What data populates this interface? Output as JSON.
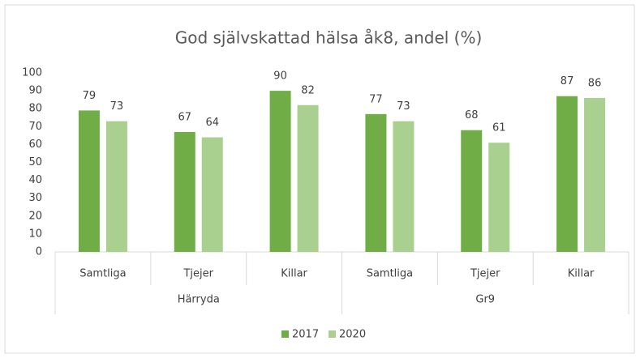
{
  "chart_data": {
    "type": "bar",
    "title": "God självskattad hälsa åk8, andel (%)",
    "categories": [
      "Samtliga",
      "Tjejer",
      "Killar",
      "Samtliga",
      "Tjejer",
      "Killar"
    ],
    "category_groups": [
      "Härryda",
      "Gr9"
    ],
    "series": [
      {
        "name": "2017",
        "color": "#70ad47",
        "values": [
          79,
          67,
          90,
          77,
          68,
          87
        ]
      },
      {
        "name": "2020",
        "color": "#a9d08e",
        "values": [
          73,
          64,
          82,
          73,
          61,
          86
        ]
      }
    ],
    "ylim": [
      0,
      100
    ],
    "yticks": [
      0,
      10,
      20,
      30,
      40,
      50,
      60,
      70,
      80,
      90,
      100
    ],
    "grid": false,
    "legend": "bottom"
  }
}
